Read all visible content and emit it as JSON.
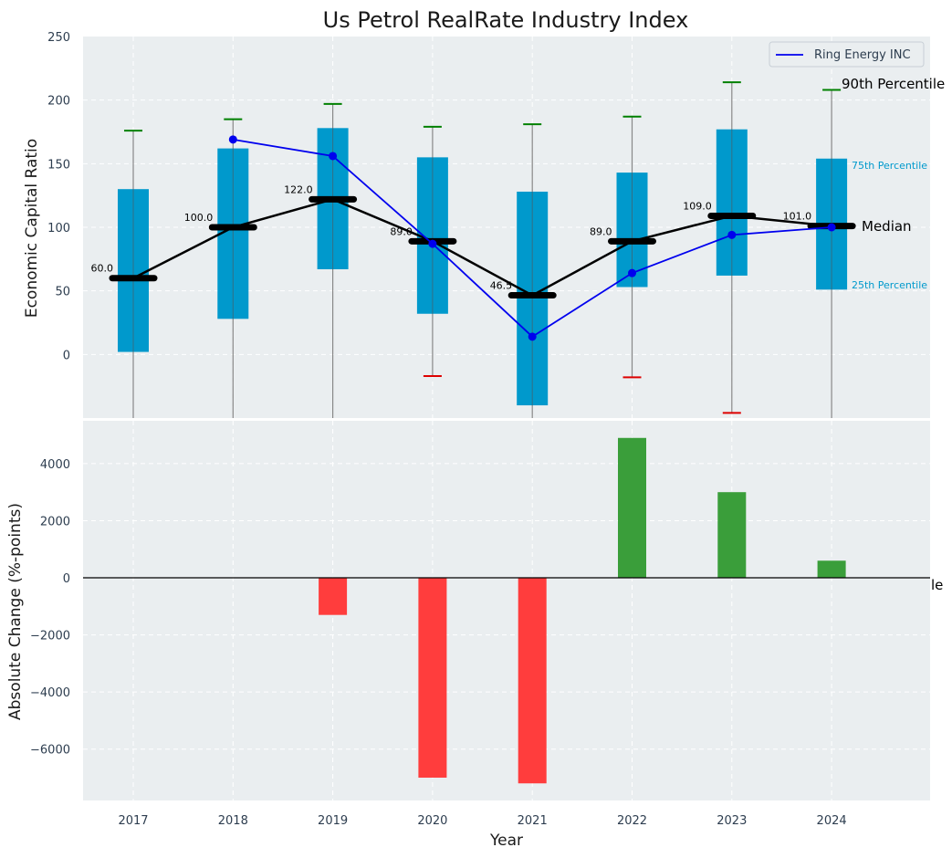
{
  "chart_data": [
    {
      "type": "box",
      "title": "Us Petrol RealRate Industry Index",
      "xlabel": "",
      "ylabel": "Economic Capital Ratio",
      "ylim": [
        -50,
        250
      ],
      "yticks": [
        0,
        50,
        100,
        150,
        200,
        250
      ],
      "grid": true,
      "legend": {
        "placement": "top-right",
        "entries": [
          "Ring Energy INC"
        ]
      },
      "categories": [
        "2017",
        "2018",
        "2019",
        "2020",
        "2021",
        "2022",
        "2023",
        "2024"
      ],
      "p10": [
        null,
        null,
        null,
        -17,
        null,
        -18,
        -46,
        null
      ],
      "p25": [
        2,
        28,
        67,
        32,
        -40,
        53,
        62,
        51
      ],
      "median": [
        60.0,
        100.0,
        122.0,
        89.0,
        46.5,
        89.0,
        109.0,
        101.0
      ],
      "median_labels": [
        "60.0",
        "100.0",
        "122.0",
        "89.0",
        "46.5",
        "89.0",
        "109.0",
        "101.0"
      ],
      "p75": [
        130,
        162,
        178,
        155,
        128,
        143,
        177,
        154
      ],
      "p90": [
        176,
        185,
        197,
        179,
        181,
        187,
        214,
        208
      ],
      "series": [
        {
          "name": "Ring Energy INC",
          "values": [
            null,
            169,
            156,
            87,
            14,
            64,
            94,
            100
          ],
          "color": "#0000ee"
        }
      ],
      "annotations": {
        "p90": "90th Percentile",
        "p75": "75th Percentile",
        "median": "Median",
        "p25": "25th Percentile"
      },
      "colors": {
        "box": "#0099cc",
        "median_line": "#000000",
        "p90_cap": "#008000",
        "p10_cap": "#dd0000"
      }
    },
    {
      "type": "bar",
      "title": "",
      "xlabel": "Year",
      "ylabel": "Absolute Change (%-points)",
      "ylim": [
        -7800,
        5500
      ],
      "yticks": [
        -6000,
        -4000,
        -2000,
        0,
        2000,
        4000
      ],
      "ytick_labels": [
        "−6000",
        "−4000",
        "−2000",
        "0",
        "2000",
        "4000"
      ],
      "grid": true,
      "categories": [
        "2017",
        "2018",
        "2019",
        "2020",
        "2021",
        "2022",
        "2023",
        "2024"
      ],
      "values": [
        null,
        null,
        -1300,
        -7000,
        -7200,
        4900,
        3000,
        600
      ],
      "colors": {
        "positive": "#3a9e3a",
        "negative": "#ff3d3d"
      },
      "clipped_label": "le"
    }
  ]
}
